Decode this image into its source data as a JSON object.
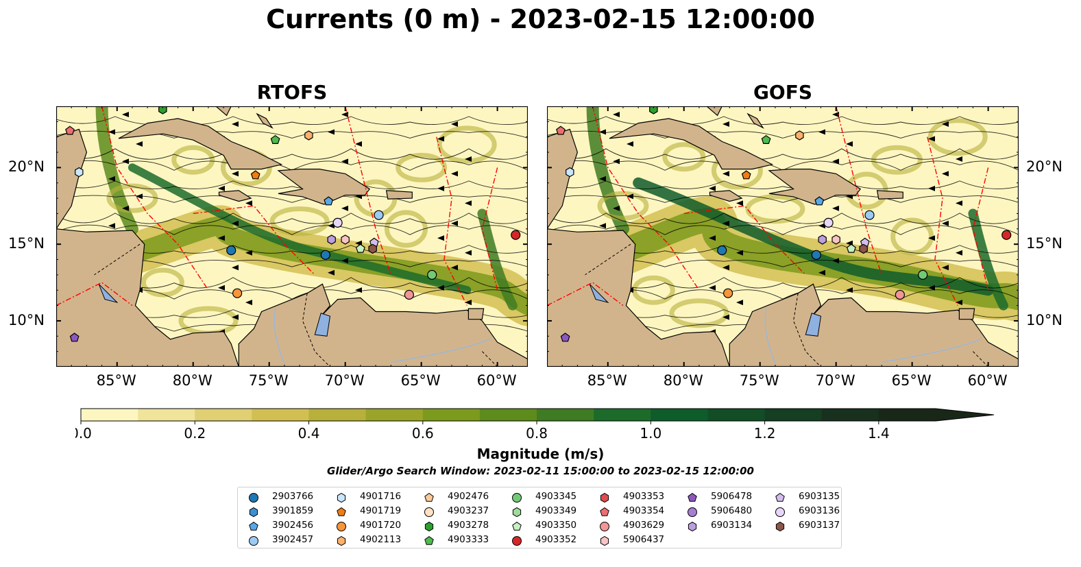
{
  "figure": {
    "title": "Currents (0 m) - 2023-02-15 12:00:00",
    "search_window": "Glider/Argo Search Window: 2023-02-11 15:00:00 to 2023-02-15 12:00:00"
  },
  "chart_data": [
    {
      "type": "heatmap",
      "title": "RTOFS",
      "description_kind": "map of surface current magnitude with streamlines",
      "lon_range": [
        -89,
        -58
      ],
      "lat_range": [
        7,
        24
      ],
      "xticks": [
        "85°W",
        "80°W",
        "75°W",
        "70°W",
        "65°W",
        "60°W"
      ],
      "yticks": [
        "10°N",
        "15°N",
        "20°N"
      ]
    },
    {
      "type": "heatmap",
      "title": "GOFS",
      "lon_range": [
        -89,
        -58
      ],
      "lat_range": [
        7,
        24
      ],
      "xticks": [
        "85°W",
        "80°W",
        "75°W",
        "70°W",
        "65°W",
        "60°W"
      ],
      "yticks": [
        "10°N",
        "15°N",
        "20°N"
      ]
    }
  ],
  "colorbar": {
    "label": "Magnitude (m/s)",
    "range": [
      0.0,
      1.5
    ],
    "ticks": [
      "0.0",
      "0.2",
      "0.4",
      "0.6",
      "0.8",
      "1.0",
      "1.2",
      "1.4"
    ],
    "extend": "max",
    "colors": [
      "#fdf6c1",
      "#f0e39a",
      "#e0cf73",
      "#d2bf52",
      "#b7b03a",
      "#9aa428",
      "#7c9a1c",
      "#5d8b1c",
      "#3f7b22",
      "#1c6b2a",
      "#0f5c2b",
      "#124d26",
      "#153e22",
      "#17311e",
      "#192719"
    ]
  },
  "map_style": {
    "land": "#d2b48c",
    "lake": "#8fb1e0",
    "eez_line": "#ff0000",
    "coast": "#000000"
  },
  "legend": {
    "items": [
      {
        "id": "2903766",
        "marker": "circle",
        "color": "#1f77b4"
      },
      {
        "id": "3901859",
        "marker": "hexagon",
        "color": "#3f8fd0"
      },
      {
        "id": "3902456",
        "marker": "pentagon",
        "color": "#5aa7e6"
      },
      {
        "id": "3902457",
        "marker": "circle",
        "color": "#9ccaf2"
      },
      {
        "id": "4901716",
        "marker": "hexagon",
        "color": "#c9e6fb"
      },
      {
        "id": "4901719",
        "marker": "pentagon",
        "color": "#f07d12"
      },
      {
        "id": "4901720",
        "marker": "circle",
        "color": "#f7953a"
      },
      {
        "id": "4902113",
        "marker": "hexagon",
        "color": "#fbb26b"
      },
      {
        "id": "4902476",
        "marker": "pentagon",
        "color": "#fcca99"
      },
      {
        "id": "4903237",
        "marker": "circle",
        "color": "#fde2c5"
      },
      {
        "id": "4903278",
        "marker": "hexagon",
        "color": "#2ca02c"
      },
      {
        "id": "4903333",
        "marker": "pentagon",
        "color": "#4fbb4f"
      },
      {
        "id": "4903345",
        "marker": "circle",
        "color": "#74c976"
      },
      {
        "id": "4903349",
        "marker": "hexagon",
        "color": "#9fdc9b"
      },
      {
        "id": "4903350",
        "marker": "pentagon",
        "color": "#c8f0c3"
      },
      {
        "id": "4903352",
        "marker": "circle",
        "color": "#d62728"
      },
      {
        "id": "4903353",
        "marker": "hexagon",
        "color": "#e04b4c"
      },
      {
        "id": "4903354",
        "marker": "pentagon",
        "color": "#ea6f72"
      },
      {
        "id": "4903629",
        "marker": "circle",
        "color": "#f29597"
      },
      {
        "id": "5906437",
        "marker": "hexagon",
        "color": "#f9c3c4"
      },
      {
        "id": "5906478",
        "marker": "pentagon",
        "color": "#8c58c0"
      },
      {
        "id": "5906480",
        "marker": "circle",
        "color": "#a77fd2"
      },
      {
        "id": "6903134",
        "marker": "hexagon",
        "color": "#bd9ee0"
      },
      {
        "id": "6903135",
        "marker": "pentagon",
        "color": "#d4bdee"
      },
      {
        "id": "6903136",
        "marker": "circle",
        "color": "#e8d6f8"
      },
      {
        "id": "6903137",
        "marker": "hexagon",
        "color": "#8c564b"
      }
    ]
  }
}
